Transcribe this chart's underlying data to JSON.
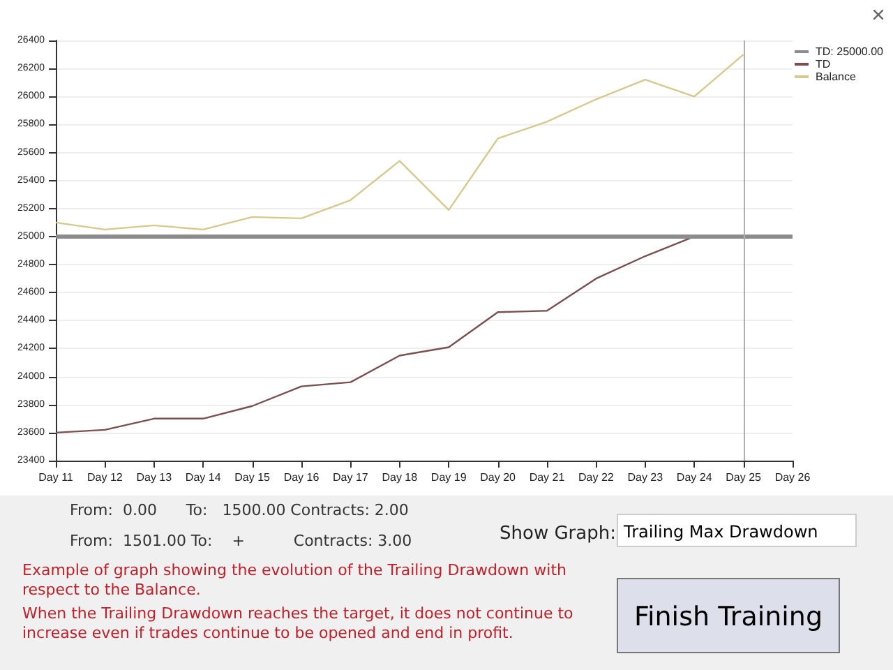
{
  "chart_data": {
    "type": "line",
    "categories": [
      "Day 11",
      "Day 12",
      "Day 13",
      "Day 14",
      "Day 15",
      "Day 16",
      "Day 17",
      "Day 18",
      "Day 19",
      "Day 20",
      "Day 21",
      "Day 22",
      "Day 23",
      "Day 24",
      "Day 25",
      "Day 26"
    ],
    "series": [
      {
        "name": "TD",
        "color": "#7a4f4f",
        "values": [
          23600,
          23620,
          23700,
          23700,
          23790,
          23930,
          23960,
          24150,
          24210,
          24460,
          24470,
          24700,
          24860,
          25000,
          25000,
          null
        ]
      },
      {
        "name": "Balance",
        "color": "#d6c98e",
        "values": [
          25100,
          25050,
          25080,
          25050,
          25140,
          25130,
          25260,
          25540,
          25190,
          25700,
          25820,
          25980,
          26120,
          26000,
          26300,
          null
        ]
      }
    ],
    "ylim": [
      23400,
      26400
    ],
    "yticks": [
      23400,
      23600,
      23800,
      24000,
      24200,
      24400,
      24600,
      24800,
      25000,
      25200,
      25400,
      25600,
      25800,
      26000,
      26200,
      26400
    ],
    "ref_lines": [
      {
        "axis": "y",
        "value": 25000,
        "label": "TD: 25000.00",
        "color": "#8c8c8c"
      },
      {
        "axis": "x",
        "value": "Day 25",
        "label": null,
        "color": "#b0b0b0"
      }
    ],
    "grid": "y",
    "legend": "top right",
    "marker": "none",
    "line_style": "solid",
    "annotations": [
      "From:  0.00      To:   1500.00 Contracts: 2.00",
      "From:  1501.00 To:    +          Contracts: 3.00",
      "Show Graph:",
      "Trailing Max Drawdown",
      "Example of graph showing the evolution of the Trailing Drawdown with respect to the Balance.",
      "When the Trailing Drawdown reaches the target, it does not continue to increase even if trades continue to be opened and end in profit.",
      "Finish Training"
    ]
  }
}
